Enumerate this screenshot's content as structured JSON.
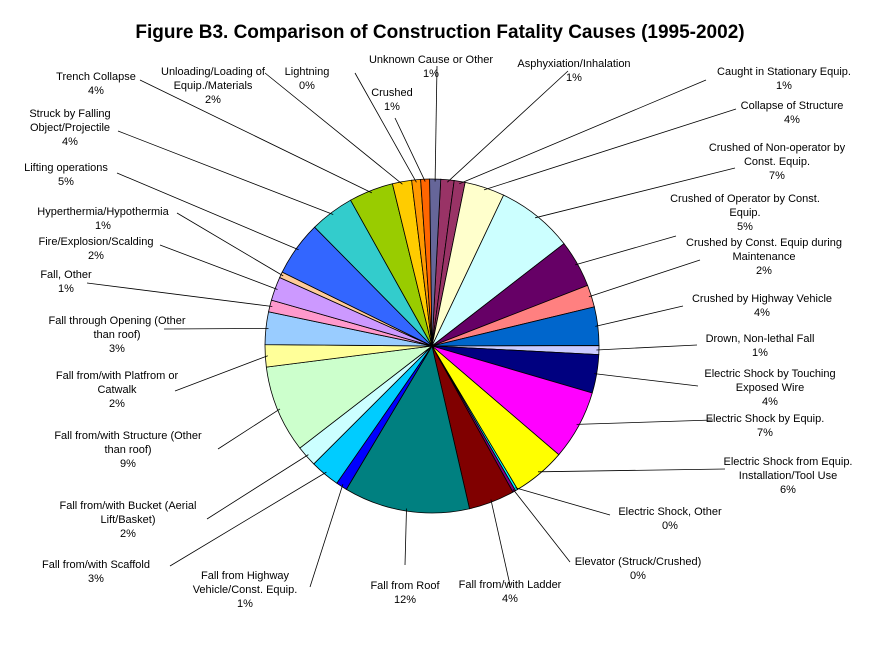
{
  "chart_data": {
    "type": "pie",
    "title": "Figure B3.   Comparison of Construction Fatality Causes (1995-2002)",
    "unit": "%",
    "slices": [
      {
        "label": "Asphyxiation/Inhalation",
        "value": 1,
        "color": "#993366"
      },
      {
        "label": "Caught in Stationary Equip.",
        "value": 1,
        "color": "#993366"
      },
      {
        "label": "Collapse of Structure",
        "value": 4,
        "color": "#ffffcc"
      },
      {
        "label": "Crushed of Non-operator by Const. Equip.",
        "value": 7,
        "color": "#ccffff"
      },
      {
        "label": "Crushed of Operator by Const. Equip.",
        "value": 5,
        "color": "#660066"
      },
      {
        "label": "Crushed by Const. Equip during Maintenance",
        "value": 2,
        "color": "#ff8080"
      },
      {
        "label": "Crushed by Highway Vehicle",
        "value": 4,
        "color": "#0066cc"
      },
      {
        "label": "Drown, Non-lethal Fall",
        "value": 1,
        "color": "#ccccff"
      },
      {
        "label": "Electric Shock by Touching Exposed Wire",
        "value": 4,
        "color": "#000080"
      },
      {
        "label": "Electric Shock by Equip.",
        "value": 7,
        "color": "#ff00ff"
      },
      {
        "label": "Electric Shock from Equip. Installation/Tool Use",
        "value": 6,
        "color": "#ffff00"
      },
      {
        "label": "Electric Shock, Other",
        "value": 0,
        "color": "#00ffff"
      },
      {
        "label": "Elevator (Struck/Crushed)",
        "value": 0,
        "color": "#800080"
      },
      {
        "label": "Fall from/with Ladder",
        "value": 4,
        "color": "#800000"
      },
      {
        "label": "Fall from Roof",
        "value": 12,
        "color": "#008080"
      },
      {
        "label": "Fall from Highway Vehicle/Const. Equip.",
        "value": 1,
        "color": "#0000ff"
      },
      {
        "label": "Fall from/with Scaffold",
        "value": 3,
        "color": "#00ccff"
      },
      {
        "label": "Fall from/with Bucket (Aerial Lift/Basket)",
        "value": 2,
        "color": "#ccffff"
      },
      {
        "label": "Fall from/with Structure (Other than roof)",
        "value": 9,
        "color": "#ccffcc"
      },
      {
        "label": "Fall from/with Platfrom or Catwalk",
        "value": 2,
        "color": "#ffff99"
      },
      {
        "label": "Fall through Opening (Other than roof)",
        "value": 3,
        "color": "#99ccff"
      },
      {
        "label": "Fall, Other",
        "value": 1,
        "color": "#ff99cc"
      },
      {
        "label": "Fire/Explosion/Scalding",
        "value": 2,
        "color": "#cc99ff"
      },
      {
        "label": "Hyperthermia/Hypothermia",
        "value": 1,
        "color": "#ffcc99"
      },
      {
        "label": "Lifting operations",
        "value": 5,
        "color": "#3366ff"
      },
      {
        "label": "Struck by Falling Object/Projectile",
        "value": 4,
        "color": "#33cccc"
      },
      {
        "label": "Trench Collapse",
        "value": 4,
        "color": "#99cc00"
      },
      {
        "label": "Unloading/Loading of Equip./Materials",
        "value": 2,
        "color": "#ffcc00"
      },
      {
        "label": "Lightning",
        "value": 0,
        "color": "#ff9900"
      },
      {
        "label": "Crushed",
        "value": 1,
        "color": "#ff6600"
      },
      {
        "label": "Unknown Cause or Other",
        "value": 1,
        "color": "#666699"
      }
    ],
    "labels": [
      {
        "lines": [
          "Asphyxiation/Inhalation",
          "1%"
        ]
      },
      {
        "lines": [
          "Caught in Stationary Equip.",
          "1%"
        ]
      },
      {
        "lines": [
          "Collapse of Structure",
          "4%"
        ]
      },
      {
        "lines": [
          "Crushed of Non-operator by",
          "Const. Equip.",
          "7%"
        ]
      },
      {
        "lines": [
          "Crushed of Operator by Const.",
          "Equip.",
          "5%"
        ]
      },
      {
        "lines": [
          "Crushed by Const. Equip during",
          "Maintenance",
          "2%"
        ]
      },
      {
        "lines": [
          "Crushed by Highway Vehicle",
          "4%"
        ]
      },
      {
        "lines": [
          "Drown, Non-lethal Fall",
          "1%"
        ]
      },
      {
        "lines": [
          "Electric Shock by Touching",
          "Exposed Wire",
          "4%"
        ]
      },
      {
        "lines": [
          "Electric Shock by Equip.",
          "7%"
        ]
      },
      {
        "lines": [
          "Electric Shock from Equip.",
          "Installation/Tool Use",
          "6%"
        ]
      },
      {
        "lines": [
          "Electric Shock, Other",
          "0%"
        ]
      },
      {
        "lines": [
          "Elevator (Struck/Crushed)",
          "0%"
        ]
      },
      {
        "lines": [
          "Fall from/with Ladder",
          "4%"
        ]
      },
      {
        "lines": [
          "Fall from Roof",
          "12%"
        ]
      },
      {
        "lines": [
          "Fall from Highway",
          "Vehicle/Const. Equip.",
          "1%"
        ]
      },
      {
        "lines": [
          "Fall from/with Scaffold",
          "3%"
        ]
      },
      {
        "lines": [
          "Fall from/with Bucket (Aerial",
          "Lift/Basket)",
          "2%"
        ]
      },
      {
        "lines": [
          "Fall from/with Structure (Other",
          "than roof)",
          "9%"
        ]
      },
      {
        "lines": [
          "Fall from/with Platfrom or",
          "Catwalk",
          "2%"
        ]
      },
      {
        "lines": [
          "Fall through Opening (Other",
          "than roof)",
          "3%"
        ]
      },
      {
        "lines": [
          "Fall, Other",
          "1%"
        ]
      },
      {
        "lines": [
          "Fire/Explosion/Scalding",
          "2%"
        ]
      },
      {
        "lines": [
          "Hyperthermia/Hypothermia",
          "1%"
        ]
      },
      {
        "lines": [
          "Lifting operations",
          "5%"
        ]
      },
      {
        "lines": [
          "Struck by Falling",
          "Object/Projectile",
          "4%"
        ]
      },
      {
        "lines": [
          "Trench Collapse",
          "4%"
        ]
      },
      {
        "lines": [
          "Unloading/Loading of",
          "Equip./Materials",
          "2%"
        ]
      },
      {
        "lines": [
          "Lightning",
          "0%"
        ]
      },
      {
        "lines": [
          "Crushed",
          "1%"
        ]
      },
      {
        "lines": [
          "Unknown Cause or Other",
          "1%"
        ]
      }
    ]
  }
}
